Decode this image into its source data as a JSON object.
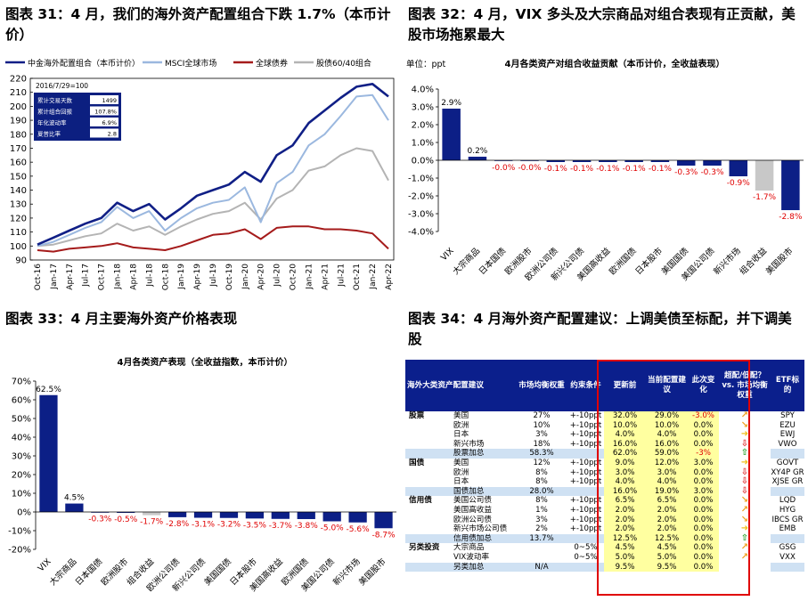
{
  "headings": {
    "h31": "图表 31：4 月，我们的海外资产配置组合下跌 1.7%（本币计价）",
    "h32": "图表 32：4 月，VIX 多头及大宗商品对组合表现有正贡献，美股市场拖累最大",
    "h33": "图表 33：4 月主要海外资产价格表现",
    "h34": "图表 34：4 月海外资产配置建议：上调美债至标配，并下调美股"
  },
  "chart31": {
    "legend": [
      "中金海外配置组合（本币计价）",
      "MSCI全球市场",
      "全球债券",
      "股债60/40组合"
    ],
    "colors": [
      "#101f86",
      "#9bb8df",
      "#a51b1b",
      "#b4b4b4"
    ],
    "note": "2016/7/29=100",
    "stats": [
      [
        "累计交易天数",
        "1499"
      ],
      [
        "累计组合回报",
        "107.8%"
      ],
      [
        "年化波动率",
        "6.9%"
      ],
      [
        "夏普比率",
        "2.8"
      ]
    ],
    "y_ticks": [
      "90",
      "100",
      "110",
      "120",
      "130",
      "140",
      "150",
      "160",
      "170",
      "180",
      "190",
      "200",
      "210",
      "220"
    ],
    "x_ticks": [
      "Oct-16",
      "Jan-17",
      "Apr-17",
      "Jul-17",
      "Oct-17",
      "Jan-18",
      "Apr-18",
      "Jul-18",
      "Oct-18",
      "Jan-19",
      "Apr-19",
      "Jul-19",
      "Oct-19",
      "Jan-20",
      "Apr-20",
      "Jul-20",
      "Oct-20",
      "Jan-21",
      "Apr-21",
      "Jul-21",
      "Oct-21",
      "Jan-22",
      "Apr-22"
    ]
  },
  "chart32": {
    "unit": "单位：ppt",
    "title": "4月各类资产对组合收益贡献（本币计价，全收益表现）",
    "y_ticks": [
      "4.0%",
      "3.0%",
      "2.0%",
      "1.0%",
      "0.0%",
      "-1.0%",
      "-2.0%",
      "-3.0%",
      "-4.0%"
    ]
  },
  "chart33": {
    "title": "4月各类资产表现（全收益指数，本币计价）",
    "y_ticks": [
      "70%",
      "60%",
      "50%",
      "40%",
      "30%",
      "20%",
      "10%",
      "0%",
      "-10%",
      "-20%"
    ]
  },
  "chart_data": [
    {
      "type": "line",
      "legend": [
        "中金海外配置组合（本币计价）",
        "MSCI全球市场",
        "全球债券",
        "股债60/40组合"
      ],
      "x": [
        "Oct-16",
        "Jan-17",
        "Apr-17",
        "Jul-17",
        "Oct-17",
        "Jan-18",
        "Apr-18",
        "Jul-18",
        "Oct-18",
        "Jan-19",
        "Apr-19",
        "Jul-19",
        "Oct-19",
        "Jan-20",
        "Apr-20",
        "Jul-20",
        "Oct-20",
        "Jan-21",
        "Apr-21",
        "Jul-21",
        "Oct-21",
        "Jan-22",
        "Apr-22"
      ],
      "ylim": [
        90,
        220
      ],
      "series": [
        {
          "name": "中金海外配置组合（本币计价）",
          "values": [
            101,
            106,
            111,
            116,
            120,
            131,
            125,
            130,
            119,
            127,
            136,
            140,
            144,
            153,
            146,
            165,
            172,
            188,
            197,
            206,
            214,
            216,
            207
          ]
        },
        {
          "name": "MSCI全球市场",
          "values": [
            100,
            103,
            108,
            113,
            117,
            128,
            120,
            125,
            111,
            120,
            127,
            131,
            133,
            142,
            117,
            145,
            153,
            172,
            180,
            193,
            207,
            208,
            190
          ]
        },
        {
          "name": "全球债券",
          "values": [
            97,
            96,
            98,
            99,
            100,
            102,
            99,
            98,
            97,
            100,
            104,
            108,
            109,
            112,
            105,
            113,
            114,
            114,
            112,
            112,
            111,
            109,
            98
          ]
        },
        {
          "name": "股债60/40组合",
          "values": [
            100,
            101,
            104,
            107,
            109,
            116,
            111,
            114,
            108,
            114,
            119,
            123,
            125,
            131,
            119,
            134,
            140,
            154,
            157,
            165,
            170,
            168,
            147
          ]
        }
      ]
    },
    {
      "type": "bar",
      "categories": [
        "VIX",
        "大宗商品",
        "日本国债",
        "欧洲股市",
        "欧洲公司债",
        "新兴公司债",
        "美国高收益",
        "欧洲国债",
        "日本股市",
        "美国国债",
        "美国公司债",
        "新兴市场",
        "组合收益",
        "美国股市"
      ],
      "values": [
        2.9,
        0.2,
        -0.04,
        -0.04,
        -0.1,
        -0.1,
        -0.1,
        -0.1,
        -0.1,
        -0.3,
        -0.3,
        -0.9,
        -1.7,
        -2.8
      ],
      "labels": [
        "2.9%",
        "0.2%",
        "-0.0%",
        "-0.0%",
        "-0.1%",
        "-0.1%",
        "-0.1%",
        "-0.1%",
        "-0.1%",
        "-0.3%",
        "-0.3%",
        "-0.9%",
        "-1.7%",
        "-2.8%"
      ],
      "highlight_index": 12,
      "ylim": [
        -4,
        4
      ]
    },
    {
      "type": "bar",
      "categories": [
        "VIX",
        "大宗商品",
        "日本国债",
        "欧洲股市",
        "组合收益",
        "欧洲公司债",
        "新兴公司债",
        "美国国债",
        "日本股市",
        "美国高收益",
        "欧洲国债",
        "美国公司债",
        "新兴市场",
        "美国股市"
      ],
      "values": [
        62.5,
        4.5,
        -0.3,
        -0.5,
        -1.7,
        -2.8,
        -3.1,
        -3.2,
        -3.5,
        -3.7,
        -3.8,
        -5.0,
        -5.6,
        -8.7
      ],
      "labels": [
        "62.5%",
        "4.5%",
        "-0.3%",
        "-0.5%",
        "-1.7%",
        "-2.8%",
        "-3.1%",
        "-3.2%",
        "-3.5%",
        "-3.7%",
        "-3.8%",
        "-5.0%",
        "-5.6%",
        "-8.7%"
      ],
      "highlight_index": 4,
      "ylim": [
        -20,
        70
      ]
    }
  ],
  "table": {
    "headers": [
      "海外大类资产配置建议",
      "市场均衡权重",
      "约束条件",
      "更新前",
      "当前配置建议",
      "此次变化",
      "超配/低配？ vs. 市场均衡权重",
      "ETF标的"
    ],
    "rows": [
      {
        "kind": "item",
        "cat": "股票",
        "name": "美国",
        "w": "27%",
        "c": "+-10ppt",
        "pre": "32.0%",
        "cur": "29.0%",
        "chg": "-3.0%",
        "chg_red": true,
        "arrow": "↗",
        "arrow_color": "#f0a020",
        "etf": "SPY"
      },
      {
        "kind": "item",
        "cat": "",
        "name": "欧洲",
        "w": "10%",
        "c": "+-10ppt",
        "pre": "10.0%",
        "cur": "10.0%",
        "chg": "0.0%",
        "arrow": "↘",
        "arrow_color": "#f0a020",
        "etf": "EZU"
      },
      {
        "kind": "item",
        "cat": "",
        "name": "日本",
        "w": "3%",
        "c": "+-10ppt",
        "pre": "4.0%",
        "cur": "4.0%",
        "chg": "0.0%",
        "arrow": "➜",
        "arrow_color": "#f0c020",
        "etf": "EWJ"
      },
      {
        "kind": "item",
        "cat": "",
        "name": "新兴市场",
        "w": "18%",
        "c": "+-10ppt",
        "pre": "16.0%",
        "cur": "16.0%",
        "chg": "0.0%",
        "arrow": "⇩",
        "arrow_color": "#e03030",
        "etf": "VWO"
      },
      {
        "kind": "sum",
        "name": "股票加总",
        "w": "58.3%",
        "pre": "62.0%",
        "cur": "59.0%",
        "chg": "-3%",
        "chg_red": true,
        "arrow": "⇧",
        "arrow_color": "#2aa02a"
      },
      {
        "kind": "item",
        "cat": "国债",
        "name": "美国",
        "w": "12%",
        "c": "+-10ppt",
        "pre": "9.0%",
        "cur": "12.0%",
        "chg": "3.0%",
        "arrow": "➜",
        "arrow_color": "#f0c020",
        "etf": "GOVT"
      },
      {
        "kind": "item",
        "cat": "",
        "name": "欧洲",
        "w": "8%",
        "c": "+-10ppt",
        "pre": "3.0%",
        "cur": "3.0%",
        "chg": "0.0%",
        "arrow": "⇩",
        "arrow_color": "#e03030",
        "etf": "XY4P GR"
      },
      {
        "kind": "item",
        "cat": "",
        "name": "日本",
        "w": "8%",
        "c": "+-10ppt",
        "pre": "4.0%",
        "cur": "4.0%",
        "chg": "0.0%",
        "arrow": "⇩",
        "arrow_color": "#e03030",
        "etf": "XJSE GR"
      },
      {
        "kind": "sum",
        "name": "国债加总",
        "w": "28.0%",
        "pre": "16.0%",
        "cur": "19.0%",
        "chg": "3.0%",
        "arrow": "⇩",
        "arrow_color": "#e03030"
      },
      {
        "kind": "item",
        "cat": "信用债",
        "name": "美国公司债",
        "w": "8%",
        "c": "+-10ppt",
        "pre": "6.5%",
        "cur": "6.5%",
        "chg": "0.0%",
        "arrow": "↘",
        "arrow_color": "#f0a020",
        "etf": "LQD"
      },
      {
        "kind": "item",
        "cat": "",
        "name": "美国高收益",
        "w": "1%",
        "c": "+-10ppt",
        "pre": "2.0%",
        "cur": "2.0%",
        "chg": "0.0%",
        "arrow": "↗",
        "arrow_color": "#f0a020",
        "etf": "HYG"
      },
      {
        "kind": "item",
        "cat": "",
        "name": "欧洲公司债",
        "w": "3%",
        "c": "+-10ppt",
        "pre": "2.0%",
        "cur": "2.0%",
        "chg": "0.0%",
        "arrow": "↘",
        "arrow_color": "#f0a020",
        "etf": "IBCS GR"
      },
      {
        "kind": "item",
        "cat": "",
        "name": "新兴市场公司债",
        "w": "2%",
        "c": "+-10ppt",
        "pre": "2.0%",
        "cur": "2.0%",
        "chg": "0.0%",
        "arrow": "➜",
        "arrow_color": "#f0c020",
        "etf": "EMB"
      },
      {
        "kind": "sum",
        "name": "信用债加总",
        "w": "13.7%",
        "pre": "12.5%",
        "cur": "12.5%",
        "chg": "0.0%",
        "arrow": "⇧",
        "arrow_color": "#2aa02a"
      },
      {
        "kind": "item",
        "cat": "另类投资",
        "name": "大宗商品",
        "w": "",
        "c": "0~5%",
        "pre": "4.5%",
        "cur": "4.5%",
        "chg": "0.0%",
        "arrow": "↗",
        "arrow_color": "#f0a020",
        "etf": "GSG"
      },
      {
        "kind": "item",
        "cat": "",
        "name": "VIX波动率",
        "w": "",
        "c": "0~5%",
        "pre": "5.0%",
        "cur": "5.0%",
        "chg": "0.0%",
        "arrow": "↗",
        "arrow_color": "#f0a020",
        "etf": "VXX"
      },
      {
        "kind": "sum",
        "name": "另类加总",
        "w": "N/A",
        "pre": "9.5%",
        "cur": "9.5%",
        "chg": "0.0%",
        "arrow": "",
        "arrow_color": "#000"
      }
    ]
  }
}
